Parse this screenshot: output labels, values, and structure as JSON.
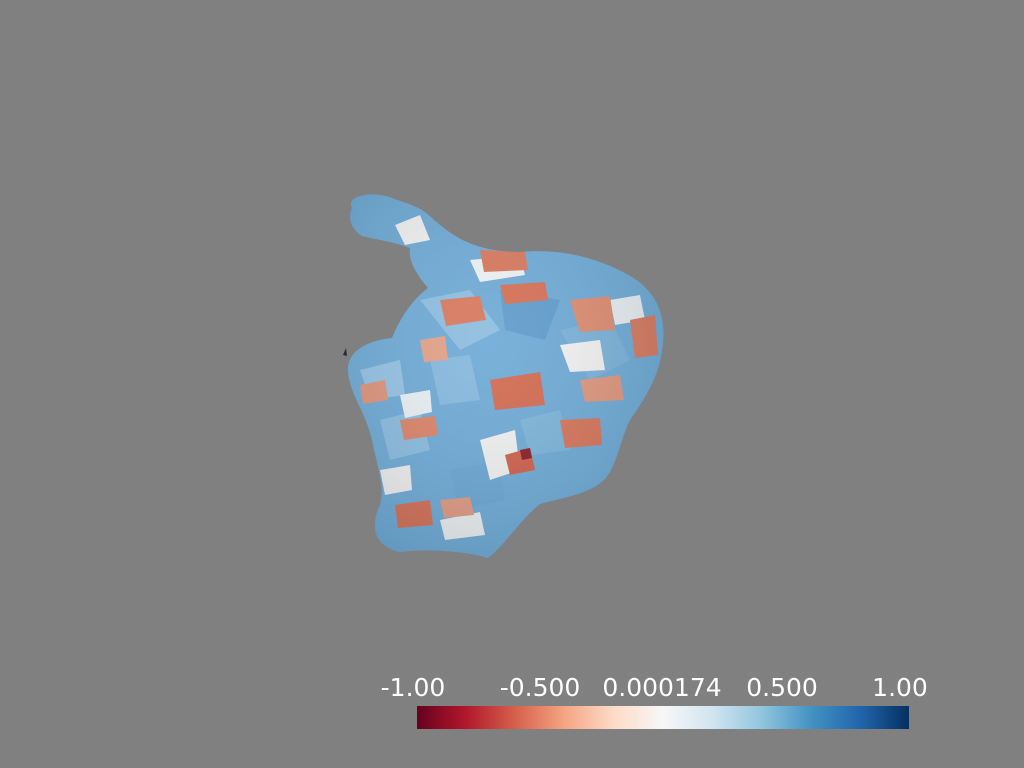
{
  "scene": {
    "background_color": "#808080",
    "object": "3d-blob-surface-mesh",
    "surface_colors": {
      "blue": "#6fa9d6",
      "light_blue": "#a9cde6",
      "white": "#f4f2f1",
      "salmon": "#e39a7e",
      "red": "#d2694f",
      "dark_red": "#8a1a25"
    }
  },
  "scalar_bar": {
    "min": -1.0,
    "max": 1.0,
    "colormap": [
      "#67001f",
      "#b2182b",
      "#d6604d",
      "#f4a582",
      "#fddbc7",
      "#f7f7f7",
      "#d1e5f0",
      "#92c5de",
      "#4393c3",
      "#2166ac",
      "#053061"
    ],
    "ticks": [
      {
        "label": "-1.00",
        "value": -1.0
      },
      {
        "label": "-0.500",
        "value": -0.5
      },
      {
        "label": "0.000174",
        "value": 0.000174
      },
      {
        "label": "0.500",
        "value": 0.5
      },
      {
        "label": "1.00",
        "value": 1.0
      }
    ]
  }
}
